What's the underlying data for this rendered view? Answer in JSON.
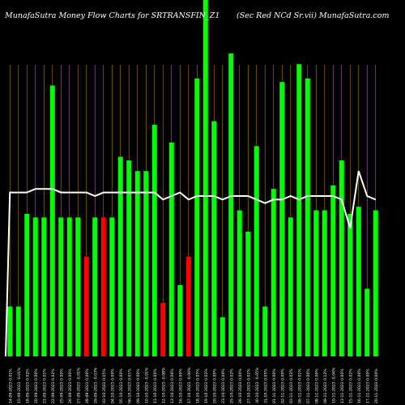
{
  "chart_data": {
    "type": "bar",
    "title": "MunafaSutra  Money Flow  Charts for SRTRANSFIN_Z1",
    "subtitle": "(Sec Red NCd Sr.vii) MunafaSutra.com",
    "grid": "vertical",
    "ylim": [
      0,
      100
    ],
    "categories": [
      "14-09-2023",
      "15-09-2023",
      "18-09-2023",
      "20-09-2023",
      "21-09-2023",
      "22-09-2023",
      "25-09-2023",
      "26-09-2023",
      "27-09-2023",
      "28-09-2023",
      "29-09-2023",
      "03-10-2023",
      "04-10-2023",
      "05-10-2023",
      "06-10-2023",
      "09-10-2023",
      "10-10-2023",
      "11-10-2023",
      "12-10-2023",
      "13-10-2023",
      "16-10-2023",
      "17-10-2023",
      "18-10-2023",
      "19-10-2023",
      "20-10-2023",
      "23-10-2023",
      "25-10-2023",
      "26-10-2023",
      "27-10-2023",
      "30-10-2023",
      "31-10-2023",
      "01-11-2023",
      "02-11-2023",
      "03-11-2023",
      "06-11-2023",
      "07-11-2023",
      "08-11-2023",
      "09-11-2023",
      "10-11-2023",
      "13-11-2023",
      "15-11-2023",
      "16-11-2023",
      "17-11-2023",
      "20-11-2023"
    ],
    "tick_labels": [
      "14-09-2023 0.01%",
      "15-09-2023 -0.01%",
      "18-09-2023 0.02%",
      "20-09-2023 0.00%",
      "21-09-2023 0.01%",
      "22-09-2023 0.02%",
      "25-09-2023 0.00%",
      "26-09-2023 0.00%",
      "27-09-2023 -0.01%",
      "28-09-2023 0.00%",
      "29-09-2023 -0.03%",
      "03-10-2023 0.05%",
      "04-10-2023 0.00%",
      "05-10-2023 0.00%",
      "06-10-2023 0.01%",
      "09-10-2023 0.00%",
      "10-10-2023 -0.01%",
      "11-10-2023 0.00%",
      "12-10-2023 -0.08%",
      "13-10-2023 0.06%",
      "16-10-2023 0.00%",
      "17-10-2023 -0.06%",
      "18-10-2023 0.05%",
      "19-10-2023 0.02%",
      "20-10-2023 0.00%",
      "23-10-2023 0.04%",
      "25-10-2023 0.02%",
      "26-10-2023 0.00%",
      "27-10-2023 0.01%",
      "30-10-2023 -0.05%",
      "31-10-2023 0.05%",
      "01-11-2023 0.00%",
      "02-11-2023 0.00%",
      "03-11-2023 0.03%",
      "06-11-2023 0.01%",
      "07-11-2023 0.00%",
      "08-11-2023 0.00%",
      "09-11-2023 0.12%",
      "10-11-2023 -0.04%",
      "13-11-2023 0.00%",
      "15-11-2023 0.02%",
      "16-11-2023 0.00%",
      "17-11-2023 0.00%",
      "20-11-2023 0.00%"
    ],
    "colors": {
      "up": "#00ff00",
      "down": "#ff0000",
      "line": "#ffffff",
      "grid": "#b87800"
    },
    "series": [
      {
        "values": [
          14,
          14,
          40,
          39,
          39,
          76,
          39,
          39,
          39,
          28,
          39,
          39,
          39,
          56,
          55,
          52,
          52,
          65,
          15,
          60,
          20,
          28,
          78,
          100,
          66,
          11,
          85,
          41,
          35,
          59,
          14,
          47,
          77,
          39,
          82,
          78,
          41,
          41,
          48,
          55,
          40,
          42,
          19,
          41
        ],
        "colors": [
          "green",
          "green",
          "green",
          "green",
          "green",
          "green",
          "green",
          "green",
          "green",
          "red",
          "green",
          "red",
          "green",
          "green",
          "green",
          "green",
          "green",
          "green",
          "red",
          "green",
          "green",
          "red",
          "green",
          "green",
          "green",
          "green",
          "green",
          "green",
          "green",
          "green",
          "green",
          "green",
          "green",
          "green",
          "green",
          "green",
          "green",
          "green",
          "green",
          "green",
          "green",
          "green",
          "green",
          "green"
        ]
      },
      {
        "values": [
          46,
          46,
          46,
          47,
          47,
          47,
          46,
          46,
          46,
          46,
          45,
          46,
          46,
          46,
          46,
          46,
          46,
          46,
          44,
          45,
          46,
          44,
          45,
          45,
          45,
          44,
          45,
          45,
          45,
          44,
          43,
          44,
          44,
          45,
          44,
          45,
          45,
          45,
          45,
          44,
          36,
          52,
          45,
          44
        ]
      }
    ]
  }
}
